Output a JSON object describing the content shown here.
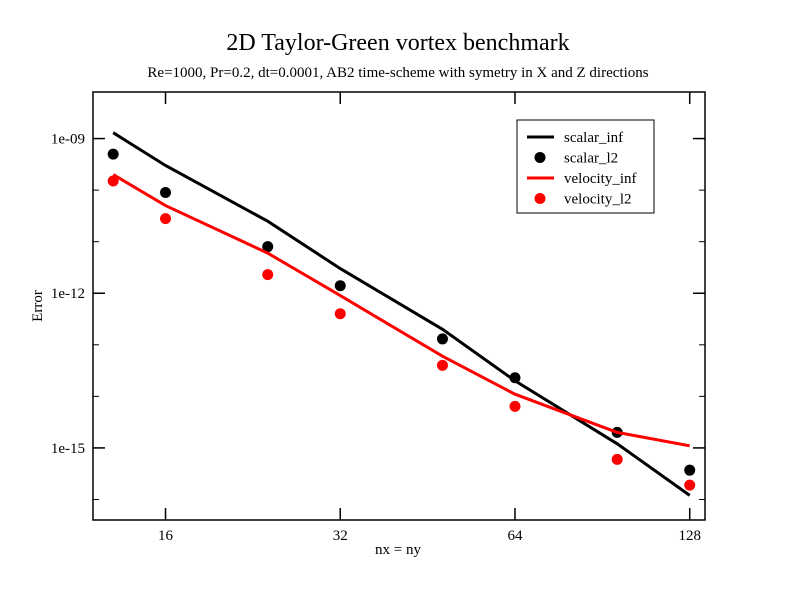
{
  "chart_data": {
    "type": "line",
    "title": "2D Taylor-Green vortex benchmark",
    "subtitle": "Re=1000, Pr=0.2, dt=0.0001, AB2 time-scheme with symetry in X and Z directions",
    "xlabel": "nx = ny",
    "ylabel": "Error",
    "xscale": "log2",
    "yscale": "log10",
    "xlim": [
      12,
      136
    ],
    "ylim": [
      4e-17,
      8e-09
    ],
    "x_ticks": [
      {
        "value": 16,
        "label": "16"
      },
      {
        "value": 32,
        "label": "32"
      },
      {
        "value": 64,
        "label": "64"
      },
      {
        "value": 128,
        "label": "128"
      }
    ],
    "y_ticks": [
      {
        "value": 1e-09,
        "label": "1e-09"
      },
      {
        "value": 1e-12,
        "label": "1e-12"
      },
      {
        "value": 1e-15,
        "label": "1e-15"
      }
    ],
    "grid": false,
    "legend_position": "top-right",
    "series": [
      {
        "name": "scalar_inf",
        "style": "line",
        "color": "#000000",
        "x": [
          13,
          16,
          24,
          32,
          48,
          64,
          96,
          128
        ],
        "y": [
          1.3e-09,
          3e-10,
          2.5e-11,
          3e-12,
          2e-13,
          2e-14,
          1.2e-15,
          1.2e-16
        ]
      },
      {
        "name": "scalar_l2",
        "style": "marker",
        "color": "#000000",
        "x": [
          13,
          16,
          24,
          32,
          48,
          64,
          96,
          128
        ],
        "y": [
          5e-10,
          9e-11,
          8e-12,
          1.4e-12,
          1.3e-13,
          2.3e-14,
          2e-15,
          3.7e-16
        ]
      },
      {
        "name": "velocity_inf",
        "style": "line",
        "color": "#ff0000",
        "x": [
          13,
          16,
          24,
          32,
          48,
          64,
          96,
          128
        ],
        "y": [
          2e-10,
          5e-11,
          6e-12,
          9e-13,
          6e-14,
          1.1e-14,
          2e-15,
          1.1e-15
        ]
      },
      {
        "name": "velocity_l2",
        "style": "marker",
        "color": "#ff0000",
        "x": [
          13,
          16,
          24,
          32,
          48,
          64,
          96,
          128
        ],
        "y": [
          1.5e-10,
          2.8e-11,
          2.3e-12,
          4e-13,
          4e-14,
          6.4e-15,
          6e-16,
          1.9e-16
        ]
      }
    ]
  }
}
